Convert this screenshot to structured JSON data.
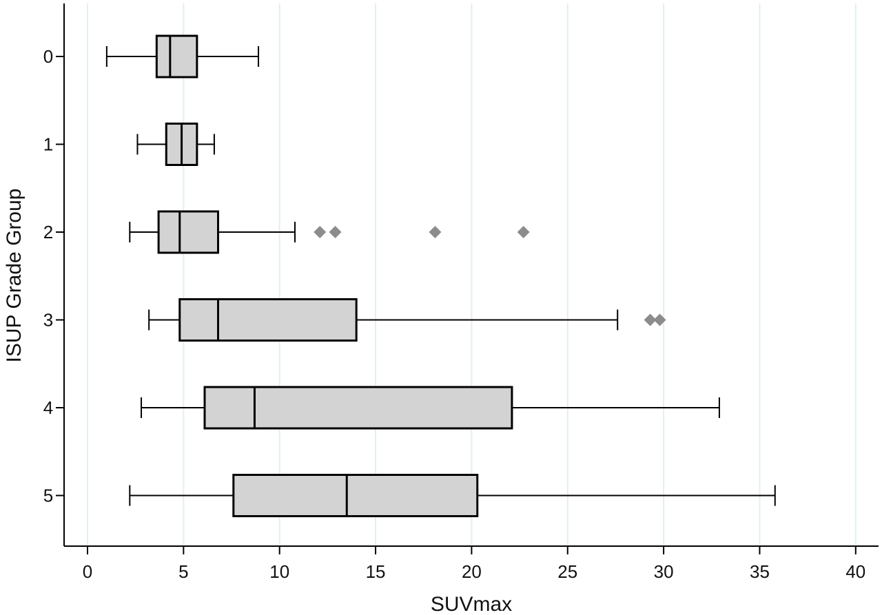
{
  "chart_data": {
    "type": "boxplot",
    "orientation": "horizontal",
    "xlabel": "SUVmax",
    "ylabel": "ISUP Grade Group",
    "xlim": [
      0,
      40
    ],
    "xticks": [
      0,
      5,
      10,
      15,
      20,
      25,
      30,
      35,
      40
    ],
    "grid": "vertical",
    "categories": [
      "0",
      "1",
      "2",
      "3",
      "4",
      "5"
    ],
    "boxes": [
      {
        "group": "0",
        "whisker_low": 1.0,
        "q1": 3.6,
        "median": 4.3,
        "q3": 5.7,
        "whisker_high": 8.9,
        "outliers": []
      },
      {
        "group": "1",
        "whisker_low": 2.6,
        "q1": 4.1,
        "median": 4.9,
        "q3": 5.7,
        "whisker_high": 6.6,
        "outliers": []
      },
      {
        "group": "2",
        "whisker_low": 2.2,
        "q1": 3.7,
        "median": 4.8,
        "q3": 6.8,
        "whisker_high": 10.8,
        "outliers": [
          12.1,
          12.9,
          18.1,
          22.7
        ]
      },
      {
        "group": "3",
        "whisker_low": 3.2,
        "q1": 4.8,
        "median": 6.8,
        "q3": 14.0,
        "whisker_high": 27.6,
        "outliers": [
          29.3,
          29.8
        ]
      },
      {
        "group": "4",
        "whisker_low": 2.8,
        "q1": 6.1,
        "median": 8.7,
        "q3": 22.1,
        "whisker_high": 32.9,
        "outliers": []
      },
      {
        "group": "5",
        "whisker_low": 2.2,
        "q1": 7.6,
        "median": 13.5,
        "q3": 20.3,
        "whisker_high": 35.8,
        "outliers": []
      }
    ],
    "colors": {
      "box_fill": "#d3d3d3",
      "outlier": "#8c8c8c",
      "grid": "#e3eef0",
      "axis": "#000000"
    }
  }
}
